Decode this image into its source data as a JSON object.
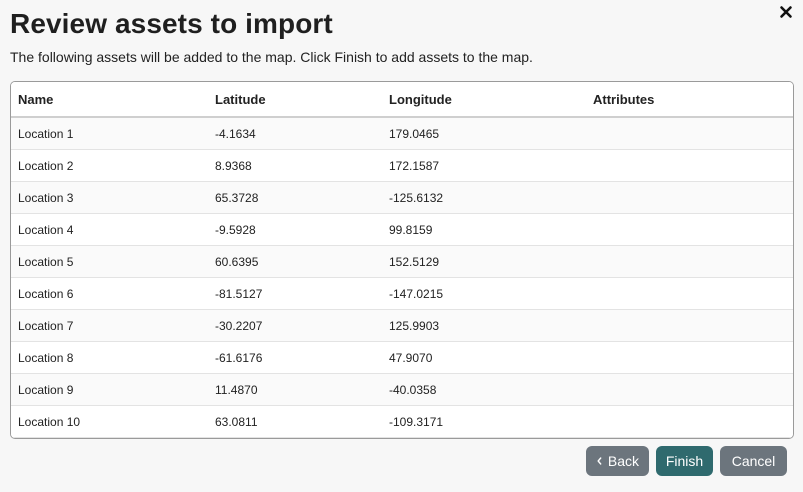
{
  "dialog": {
    "title": "Review assets to import",
    "subtitle": "The following assets will be added to the map. Click Finish to add assets to the map.",
    "close_icon": "close-icon"
  },
  "table": {
    "headers": {
      "name": "Name",
      "latitude": "Latitude",
      "longitude": "Longitude",
      "attributes": "Attributes"
    },
    "rows": [
      {
        "name": "Location 1",
        "latitude": "-4.1634",
        "longitude": "179.0465",
        "attributes": ""
      },
      {
        "name": "Location 2",
        "latitude": "8.9368",
        "longitude": "172.1587",
        "attributes": ""
      },
      {
        "name": "Location 3",
        "latitude": "65.3728",
        "longitude": "-125.6132",
        "attributes": ""
      },
      {
        "name": "Location 4",
        "latitude": "-9.5928",
        "longitude": "99.8159",
        "attributes": ""
      },
      {
        "name": "Location 5",
        "latitude": "60.6395",
        "longitude": "152.5129",
        "attributes": ""
      },
      {
        "name": "Location 6",
        "latitude": "-81.5127",
        "longitude": "-147.0215",
        "attributes": ""
      },
      {
        "name": "Location 7",
        "latitude": "-30.2207",
        "longitude": "125.9903",
        "attributes": ""
      },
      {
        "name": "Location 8",
        "latitude": "-61.6176",
        "longitude": "47.9070",
        "attributes": ""
      },
      {
        "name": "Location 9",
        "latitude": "11.4870",
        "longitude": "-40.0358",
        "attributes": ""
      },
      {
        "name": "Location 10",
        "latitude": "63.0811",
        "longitude": "-109.3171",
        "attributes": ""
      }
    ]
  },
  "footer": {
    "back_label": "Back",
    "back_icon": "chevron-left-icon",
    "finish_label": "Finish",
    "cancel_label": "Cancel"
  },
  "colors": {
    "primary": "#2f6a6e",
    "secondary": "#6c757d"
  }
}
